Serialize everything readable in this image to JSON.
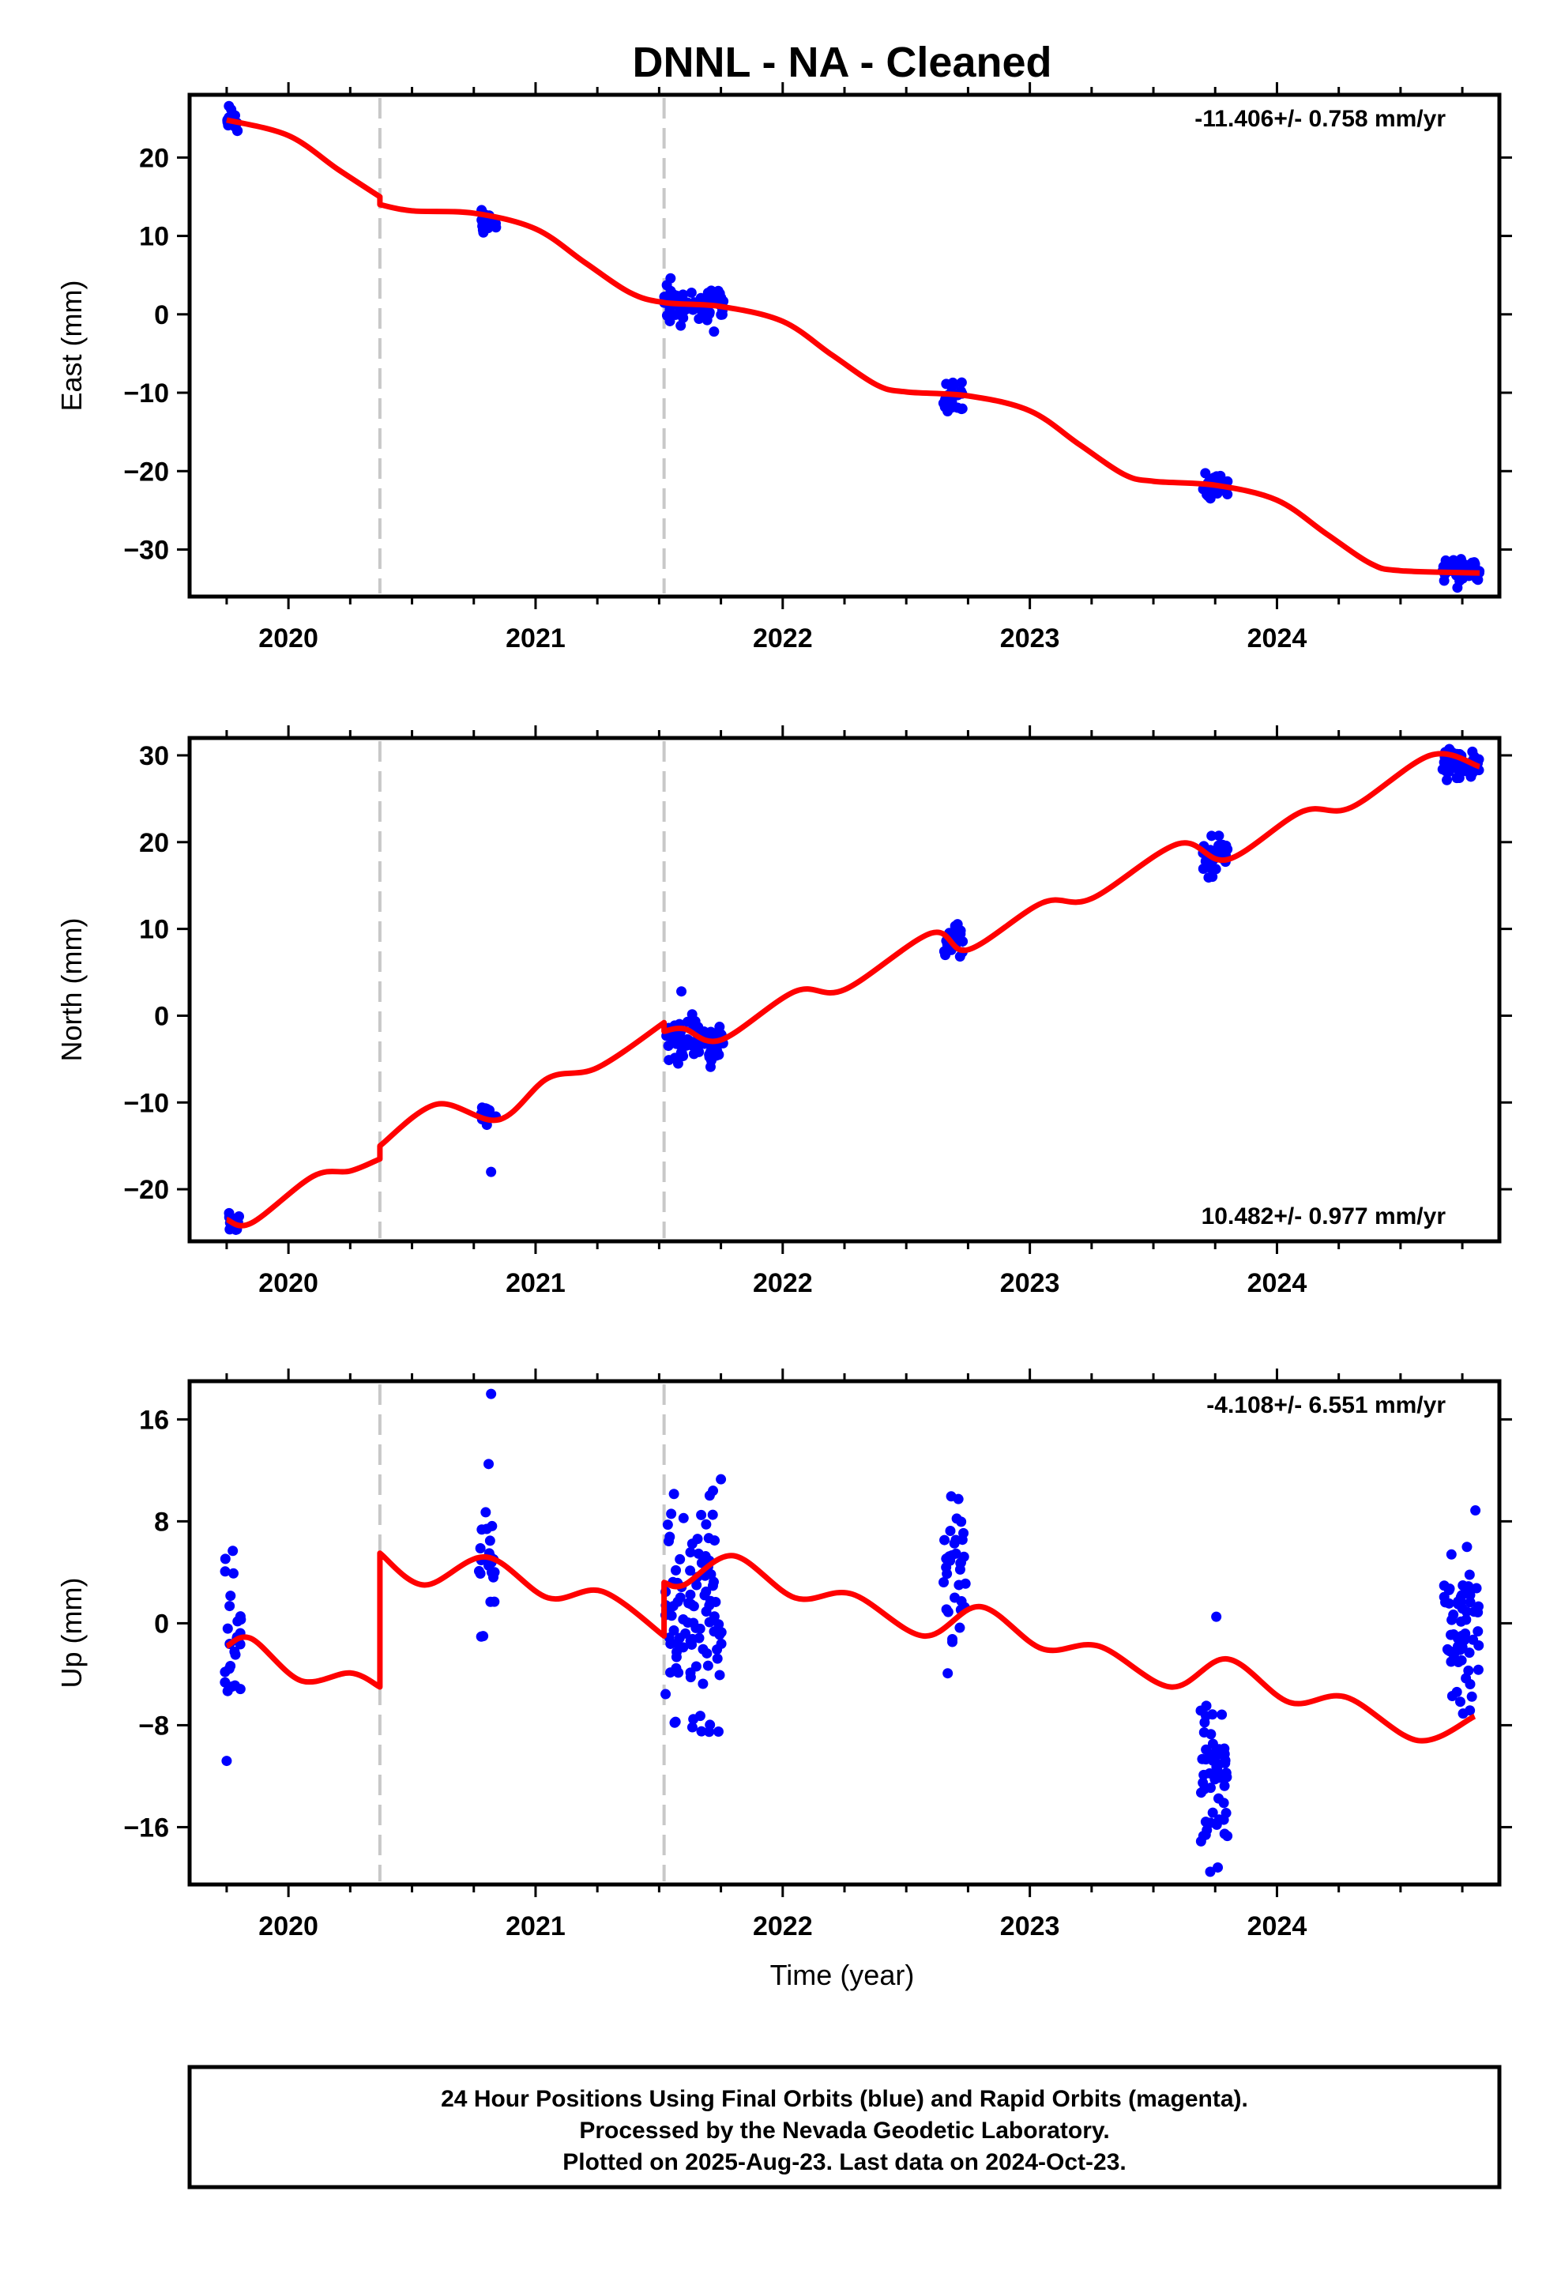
{
  "title": "DNNL  - NA - Cleaned",
  "xlabel": "Time (year)",
  "footer": {
    "line1": "24 Hour Positions Using Final Orbits (blue) and Rapid Orbits (magenta).",
    "line2": "Processed by the Nevada Geodetic Laboratory.",
    "line3": "Plotted on 2025-Aug-23. Last data on 2024-Oct-23."
  },
  "colors": {
    "data": "#0000ff",
    "model": "#ff0000",
    "break_line": "#c8c8c8",
    "frame": "#000000"
  },
  "chart_data": [
    {
      "type": "scatter",
      "ylabel": "East (mm)",
      "rate_label": "-11.406+/- 0.758 mm/yr",
      "rate_position": "top-right",
      "xlim": [
        2019.6,
        2024.9
      ],
      "ylim": [
        -36,
        28
      ],
      "yticks": [
        20,
        10,
        0,
        -10,
        -20,
        -30
      ],
      "xticks": [
        2020,
        2021,
        2022,
        2023,
        2024
      ],
      "breaks": [
        2020.37,
        2021.52
      ],
      "clusters": [
        {
          "t0": 2019.75,
          "t1": 2019.8,
          "n": 18,
          "mean": 24.6,
          "sd": 1.0
        },
        {
          "t0": 2020.78,
          "t1": 2020.84,
          "n": 16,
          "mean": 12.2,
          "sd": 0.7
        },
        {
          "t0": 2021.52,
          "t1": 2021.76,
          "n": 80,
          "mean": 1.3,
          "sd": 1.0
        },
        {
          "t0": 2022.65,
          "t1": 2022.73,
          "n": 22,
          "mean": -10.5,
          "sd": 1.0
        },
        {
          "t0": 2023.7,
          "t1": 2023.8,
          "n": 36,
          "mean": -22.0,
          "sd": 0.8
        },
        {
          "t0": 2024.67,
          "t1": 2024.82,
          "n": 50,
          "mean": -32.5,
          "sd": 0.7
        }
      ],
      "model": [
        [
          2019.75,
          24.8
        ],
        [
          2020.0,
          22.8
        ],
        [
          2020.2,
          18.5
        ],
        [
          2020.37,
          15.0
        ],
        [
          2020.37,
          14.0
        ],
        [
          2020.5,
          13.2
        ],
        [
          2020.75,
          12.9
        ],
        [
          2021.0,
          10.9
        ],
        [
          2021.2,
          6.6
        ],
        [
          2021.38,
          2.8
        ],
        [
          2021.52,
          1.5
        ],
        [
          2021.75,
          1.0
        ],
        [
          2022.0,
          -0.9
        ],
        [
          2022.2,
          -5.2
        ],
        [
          2022.38,
          -9.0
        ],
        [
          2022.5,
          -9.9
        ],
        [
          2022.75,
          -10.4
        ],
        [
          2023.0,
          -12.3
        ],
        [
          2023.2,
          -16.6
        ],
        [
          2023.38,
          -20.4
        ],
        [
          2023.5,
          -21.3
        ],
        [
          2023.75,
          -21.8
        ],
        [
          2024.0,
          -23.7
        ],
        [
          2024.2,
          -28.0
        ],
        [
          2024.38,
          -31.8
        ],
        [
          2024.5,
          -32.7
        ],
        [
          2024.82,
          -33.0
        ]
      ]
    },
    {
      "type": "scatter",
      "ylabel": "North (mm)",
      "rate_label": "10.482+/- 0.977 mm/yr",
      "rate_position": "bottom-right",
      "xlim": [
        2019.6,
        2024.9
      ],
      "ylim": [
        -26,
        32
      ],
      "yticks": [
        30,
        20,
        10,
        0,
        -10,
        -20
      ],
      "xticks": [
        2020,
        2021,
        2022,
        2023,
        2024
      ],
      "breaks": [
        2020.37,
        2021.52
      ],
      "clusters": [
        {
          "t0": 2019.75,
          "t1": 2019.8,
          "n": 16,
          "mean": -23.6,
          "sd": 0.6
        },
        {
          "t0": 2020.78,
          "t1": 2020.84,
          "n": 14,
          "mean": -11.6,
          "sd": 0.7
        },
        {
          "t0": 2021.52,
          "t1": 2021.76,
          "n": 80,
          "mean": -2.8,
          "sd": 1.2
        },
        {
          "t0": 2022.65,
          "t1": 2022.73,
          "n": 22,
          "mean": 8.5,
          "sd": 1.2
        },
        {
          "t0": 2023.7,
          "t1": 2023.8,
          "n": 40,
          "mean": 18.5,
          "sd": 1.0
        },
        {
          "t0": 2024.67,
          "t1": 2024.82,
          "n": 50,
          "mean": 28.8,
          "sd": 0.8
        }
      ],
      "outliers": [
        [
          2020.82,
          -18.0
        ],
        [
          2021.59,
          2.8
        ]
      ],
      "model": [
        [
          2019.75,
          -23.5
        ],
        [
          2019.85,
          -23.9
        ],
        [
          2020.1,
          -18.5
        ],
        [
          2020.25,
          -17.9
        ],
        [
          2020.37,
          -16.5
        ],
        [
          2020.37,
          -15.0
        ],
        [
          2020.6,
          -10.2
        ],
        [
          2020.85,
          -12.0
        ],
        [
          2021.05,
          -7.2
        ],
        [
          2021.25,
          -6.0
        ],
        [
          2021.52,
          -0.8
        ],
        [
          2021.52,
          -1.8
        ],
        [
          2021.6,
          -1.5
        ],
        [
          2021.75,
          -2.8
        ],
        [
          2022.05,
          2.8
        ],
        [
          2022.25,
          3.0
        ],
        [
          2022.6,
          9.5
        ],
        [
          2022.75,
          7.6
        ],
        [
          2023.05,
          13.0
        ],
        [
          2023.25,
          13.5
        ],
        [
          2023.6,
          19.8
        ],
        [
          2023.8,
          18.0
        ],
        [
          2024.1,
          23.5
        ],
        [
          2024.3,
          24.0
        ],
        [
          2024.62,
          30.0
        ],
        [
          2024.82,
          28.7
        ]
      ]
    },
    {
      "type": "scatter",
      "ylabel": "Up (mm)",
      "rate_label": "-4.108+/- 6.551 mm/yr",
      "rate_position": "top-right",
      "xlim": [
        2019.6,
        2024.9
      ],
      "ylim": [
        -20.5,
        19
      ],
      "yticks": [
        16,
        8,
        0,
        -8,
        -16
      ],
      "xticks": [
        2020,
        2021,
        2022,
        2023,
        2024
      ],
      "breaks": [
        2020.37,
        2021.52
      ],
      "clusters": [
        {
          "t0": 2019.74,
          "t1": 2019.81,
          "n": 26,
          "mean": -1.5,
          "sd": 2.6
        },
        {
          "t0": 2020.77,
          "t1": 2020.84,
          "n": 22,
          "mean": 4.5,
          "sd": 2.5
        },
        {
          "t0": 2021.52,
          "t1": 2021.76,
          "n": 100,
          "mean": 1.0,
          "sd": 4.0
        },
        {
          "t0": 2022.65,
          "t1": 2022.74,
          "n": 34,
          "mean": 3.0,
          "sd": 3.3
        },
        {
          "t0": 2023.69,
          "t1": 2023.8,
          "n": 52,
          "mean": -12.0,
          "sd": 3.2
        },
        {
          "t0": 2024.67,
          "t1": 2024.82,
          "n": 66,
          "mean": -1.0,
          "sd": 3.2
        }
      ],
      "outliers": [
        [
          2019.75,
          -10.8
        ],
        [
          2020.82,
          18.0
        ],
        [
          2020.81,
          12.5
        ],
        [
          2021.75,
          11.3
        ],
        [
          2021.74,
          -8.5
        ],
        [
          2023.73,
          -19.5
        ]
      ],
      "model": [
        [
          2019.75,
          -1.8
        ],
        [
          2019.85,
          -1.2
        ],
        [
          2020.05,
          -4.5
        ],
        [
          2020.25,
          -3.9
        ],
        [
          2020.37,
          -5.0
        ],
        [
          2020.37,
          5.5
        ],
        [
          2020.55,
          3.0
        ],
        [
          2020.8,
          5.2
        ],
        [
          2021.05,
          2.0
        ],
        [
          2021.27,
          2.5
        ],
        [
          2021.52,
          -1.0
        ],
        [
          2021.52,
          3.2
        ],
        [
          2021.6,
          3.0
        ],
        [
          2021.8,
          5.3
        ],
        [
          2022.05,
          2.0
        ],
        [
          2022.28,
          2.3
        ],
        [
          2022.57,
          -1.0
        ],
        [
          2022.8,
          1.3
        ],
        [
          2023.05,
          -2.0
        ],
        [
          2023.28,
          -1.8
        ],
        [
          2023.57,
          -5.0
        ],
        [
          2023.8,
          -2.8
        ],
        [
          2024.05,
          -6.2
        ],
        [
          2024.28,
          -5.8
        ],
        [
          2024.57,
          -9.2
        ],
        [
          2024.8,
          -7.3
        ]
      ]
    }
  ]
}
